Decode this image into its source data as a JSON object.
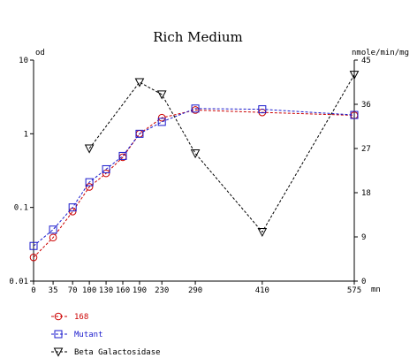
{
  "chart_data": {
    "type": "line",
    "title": "Rich Medium",
    "y_left_label": "od",
    "y_right_label": "nmole/min/mg",
    "x_unit_label": "mn",
    "x_ticks": [
      0,
      35,
      70,
      100,
      130,
      160,
      190,
      230,
      290,
      410,
      575
    ],
    "x_tick_labels": [
      "0",
      "35",
      "70",
      "100",
      "130",
      "160",
      "190",
      "230",
      "290",
      "410",
      "575"
    ],
    "y_left_scale": "log",
    "y_left_range": [
      0.01,
      10
    ],
    "y_left_ticks": [
      "10",
      "1",
      "0.1",
      "0.01"
    ],
    "y_right_range": [
      0,
      45
    ],
    "y_right_ticks": [
      "45",
      "36",
      "27",
      "18",
      "9",
      "0"
    ],
    "grid": false,
    "legend_position": "bottom-left",
    "series": [
      {
        "name": "168",
        "axis": "left",
        "marker": "circle",
        "color": "#cc0000",
        "x": [
          0,
          35,
          70,
          100,
          130,
          160,
          190,
          230,
          290,
          410,
          575
        ],
        "y": [
          0.021,
          0.039,
          0.088,
          0.19,
          0.29,
          0.48,
          1.0,
          1.65,
          2.1,
          1.95,
          1.78
        ]
      },
      {
        "name": "Mutant",
        "axis": "left",
        "marker": "square",
        "color": "#1a1acc",
        "x": [
          0,
          35,
          70,
          100,
          130,
          160,
          190,
          230,
          290,
          410,
          575
        ],
        "y": [
          0.03,
          0.05,
          0.1,
          0.22,
          0.33,
          0.5,
          1.0,
          1.45,
          2.2,
          2.15,
          1.8
        ]
      },
      {
        "name": "Beta Galactosidase",
        "axis": "right",
        "marker": "triangle-down",
        "color": "#000000",
        "x": [
          100,
          190,
          230,
          290,
          410,
          575
        ],
        "y": [
          27,
          40.5,
          38,
          26,
          10,
          42
        ]
      }
    ]
  }
}
